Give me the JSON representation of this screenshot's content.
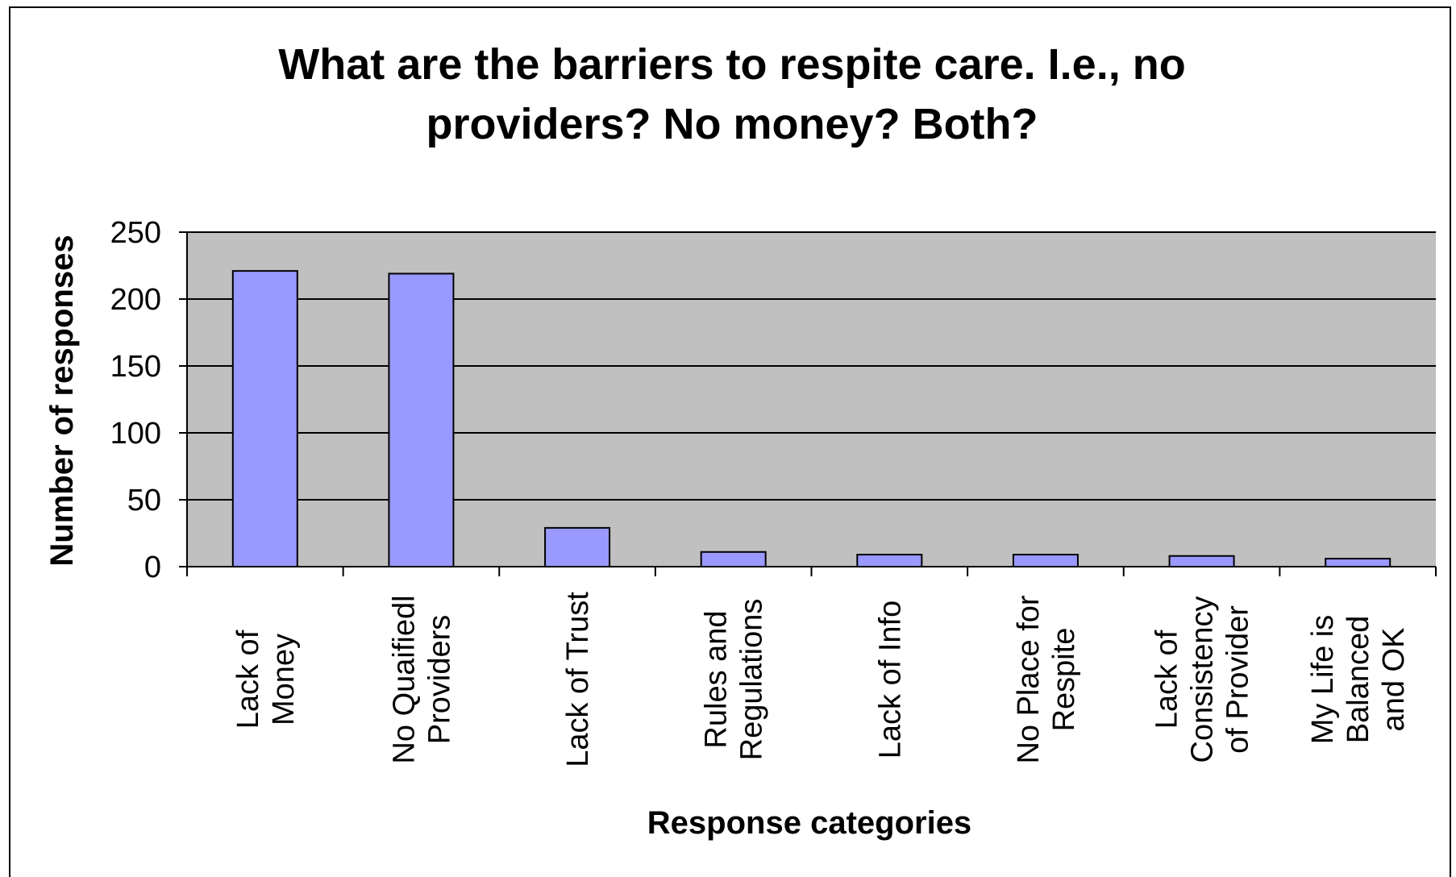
{
  "chart_data": {
    "type": "bar",
    "title": [
      "What are the barriers to respite care.  I.e., no",
      "providers?  No money?  Both?"
    ],
    "xlabel": "Response categories",
    "ylabel": "Number of responses",
    "ylim": [
      0,
      250
    ],
    "yticks": [
      0,
      50,
      100,
      150,
      200,
      250
    ],
    "grid": true,
    "categories": [
      [
        "Lack of",
        "Money"
      ],
      [
        "No Quaifiedl",
        "Providers"
      ],
      [
        "Lack of Trust"
      ],
      [
        "Rules and",
        "Regulations"
      ],
      [
        "Lack of Info"
      ],
      [
        "No Place for",
        "Respite"
      ],
      [
        "Lack of",
        "Consistency",
        "of Provider"
      ],
      [
        "My Life is",
        "Balanced",
        "and OK"
      ]
    ],
    "values": [
      221,
      219,
      29,
      11,
      9,
      9,
      8,
      6
    ],
    "colors": {
      "bar": "#9999FF",
      "plot_bg": "#C0C0C0",
      "gridline": "#000000"
    }
  }
}
